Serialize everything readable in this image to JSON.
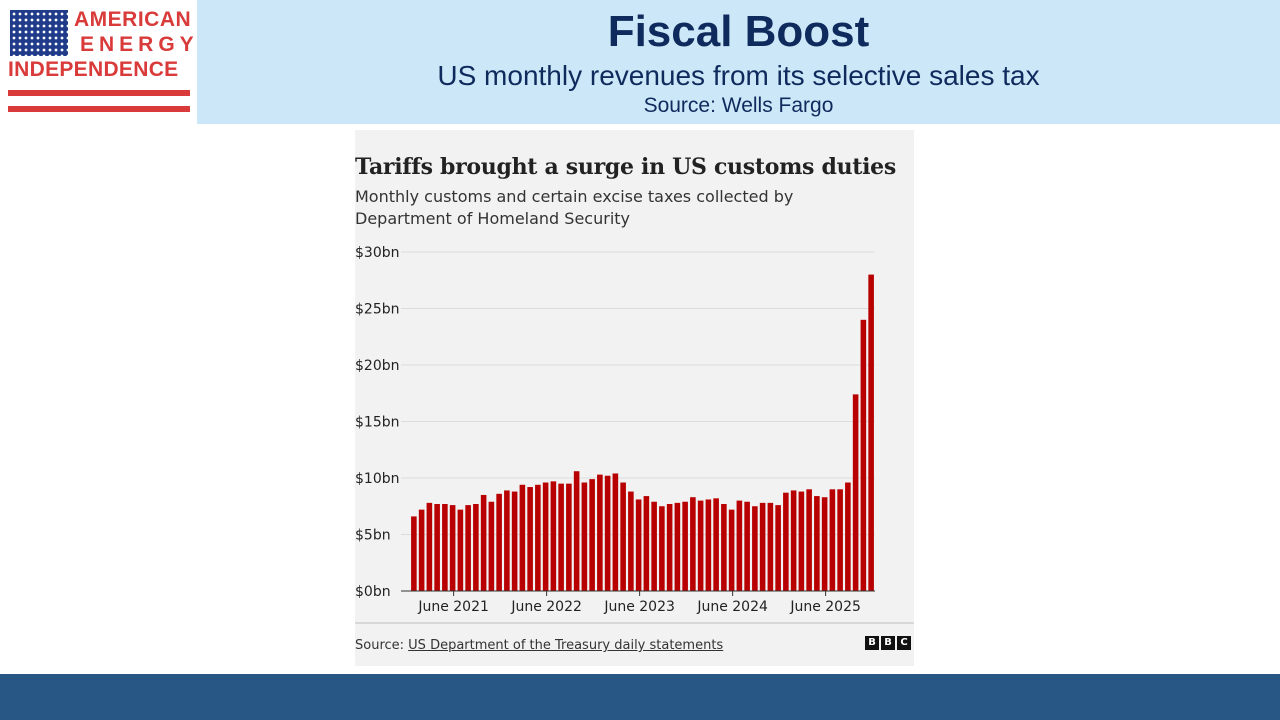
{
  "logo": {
    "line1": "AMERICAN",
    "line2": "ENERGY",
    "line3": "INDEPENDENCE"
  },
  "slide": {
    "title": "Fiscal Boost",
    "subtitle": "US monthly revenues from its selective sales tax",
    "source": "Source: Wells Fargo"
  },
  "colors": {
    "header_band": "#cce8f8",
    "title_text": "#0f2a5c",
    "bar": "#b80000",
    "footer_band": "#285685"
  },
  "chart_data": {
    "type": "bar",
    "title": "Tariffs brought a surge in US customs duties",
    "subtitle": "Monthly customs and certain excise taxes collected by Department of Homeland Security",
    "xlabel": "",
    "ylabel": "",
    "ylim": [
      0,
      30
    ],
    "yticks": [
      {
        "value": 30,
        "label": "$30bn"
      },
      {
        "value": 25,
        "label": "$25bn"
      },
      {
        "value": 20,
        "label": "$20bn"
      },
      {
        "value": 15,
        "label": "$15bn"
      },
      {
        "value": 10,
        "label": "$10bn"
      },
      {
        "value": 5,
        "label": "$5bn"
      },
      {
        "value": 0,
        "label": "$0bn"
      }
    ],
    "xticks": [
      "June 2021",
      "June 2022",
      "June 2023",
      "June 2024",
      "June 2025"
    ],
    "grid": true,
    "series": [
      {
        "values": [
          6.6,
          7.2,
          7.8,
          7.7,
          7.7,
          7.6,
          7.2,
          7.6,
          7.7,
          8.5,
          7.9,
          8.6,
          8.9,
          8.8,
          9.4,
          9.2,
          9.4,
          9.6,
          9.7,
          9.5,
          9.5,
          10.6,
          9.6,
          9.9,
          10.3,
          10.2,
          10.4,
          9.6,
          8.8,
          8.1,
          8.4,
          7.9,
          7.5,
          7.7,
          7.8,
          7.9,
          8.3,
          8.0,
          8.1,
          8.2,
          7.7,
          7.2,
          8.0,
          7.9,
          7.5,
          7.8,
          7.8,
          7.6,
          8.7,
          8.9,
          8.8,
          9.0,
          8.4,
          8.3,
          9.0,
          9.0,
          9.6,
          17.4,
          24.0,
          28.0
        ]
      }
    ],
    "source_prefix": "Source: ",
    "source_link": "US Department of the Treasury daily statements",
    "publisher_letters": [
      "B",
      "B",
      "C"
    ]
  }
}
